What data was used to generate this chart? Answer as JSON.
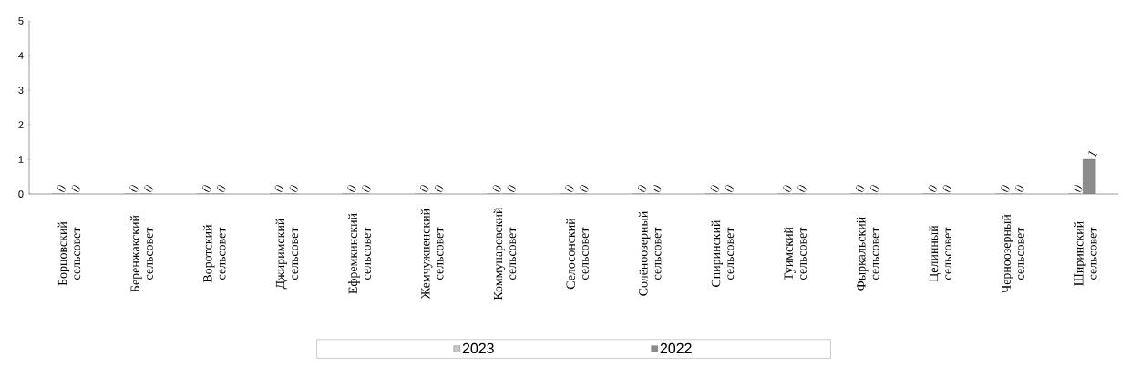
{
  "chart_data": {
    "type": "bar",
    "categories": [
      "Борцовский сельсовет",
      "Беренжакский сельсовет",
      "Воротский сельсовет",
      "Джиримский сельсовет",
      "Ефремкинский сельсовет",
      "Жемчужненский сельсовет",
      "Коммунаровский сельсовет",
      "Селосонский сельсовет",
      "Солёноозерный сельсовет",
      "Спиринский сельсовет",
      "Туимский сельсовет",
      "Фыркальский сельсовет",
      "Целинный сельсовет",
      "Черноозерный сельсовет",
      "Ширинский сельсовет"
    ],
    "series": [
      {
        "name": "2023",
        "color": "#c8c8c8",
        "values": [
          0,
          0,
          0,
          0,
          0,
          0,
          0,
          0,
          0,
          0,
          0,
          0,
          0,
          0,
          0
        ]
      },
      {
        "name": "2022",
        "color": "#8c8c8c",
        "values": [
          0,
          0,
          0,
          0,
          0,
          0,
          0,
          0,
          0,
          0,
          0,
          0,
          0,
          0,
          1
        ]
      }
    ],
    "ylim": [
      0,
      5
    ],
    "yticks": [
      0,
      1,
      2,
      3,
      4,
      5
    ],
    "data_labels": true,
    "legend": "bottom",
    "grid": false
  }
}
